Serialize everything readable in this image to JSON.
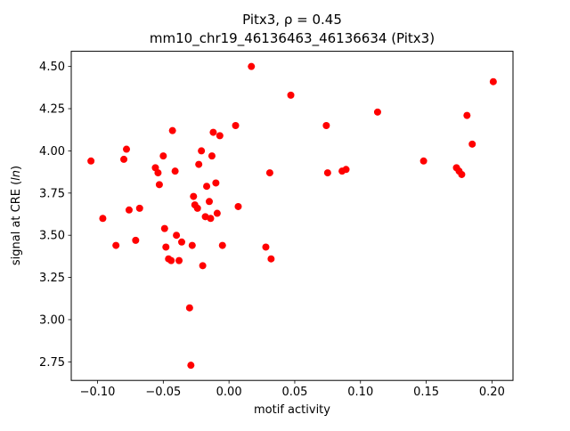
{
  "chart_data": {
    "type": "scatter",
    "title": "Pitx3, ρ = 0.45",
    "subtitle": "mm10_chr19_46136463_46136634 (Pitx3)",
    "xlabel": "motif activity",
    "ylabel_prefix": "signal at CRE (",
    "ylabel_italic": "ln",
    "ylabel_suffix": ")",
    "marker_color": "#ff0000",
    "axis_color": "#000000",
    "background_color": "#ffffff",
    "grid": false,
    "legend": "none",
    "xlim": [
      -0.12,
      0.216
    ],
    "ylim": [
      2.64,
      4.59
    ],
    "xtick_values": [
      -0.1,
      -0.05,
      0.0,
      0.05,
      0.1,
      0.15,
      0.2
    ],
    "xtick_labels": [
      "−0.10",
      "−0.05",
      "0.00",
      "0.05",
      "0.10",
      "0.15",
      "0.20"
    ],
    "ytick_values": [
      2.75,
      3.0,
      3.25,
      3.5,
      3.75,
      4.0,
      4.25,
      4.5
    ],
    "ytick_labels": [
      "2.75",
      "3.00",
      "3.25",
      "3.50",
      "3.75",
      "4.00",
      "4.25",
      "4.50"
    ],
    "points": [
      [
        -0.105,
        3.94
      ],
      [
        -0.096,
        3.6
      ],
      [
        -0.086,
        3.44
      ],
      [
        -0.08,
        3.95
      ],
      [
        -0.078,
        4.01
      ],
      [
        -0.076,
        3.65
      ],
      [
        -0.071,
        3.47
      ],
      [
        -0.068,
        3.66
      ],
      [
        -0.056,
        3.9
      ],
      [
        -0.054,
        3.87
      ],
      [
        -0.053,
        3.8
      ],
      [
        -0.05,
        3.97
      ],
      [
        -0.049,
        3.54
      ],
      [
        -0.048,
        3.43
      ],
      [
        -0.046,
        3.36
      ],
      [
        -0.044,
        3.35
      ],
      [
        -0.043,
        4.12
      ],
      [
        -0.041,
        3.88
      ],
      [
        -0.04,
        3.5
      ],
      [
        -0.038,
        3.35
      ],
      [
        -0.036,
        3.46
      ],
      [
        -0.03,
        3.07
      ],
      [
        -0.029,
        2.73
      ],
      [
        -0.028,
        3.44
      ],
      [
        -0.027,
        3.73
      ],
      [
        -0.026,
        3.68
      ],
      [
        -0.024,
        3.66
      ],
      [
        -0.023,
        3.92
      ],
      [
        -0.021,
        4.0
      ],
      [
        -0.02,
        3.32
      ],
      [
        -0.018,
        3.61
      ],
      [
        -0.017,
        3.79
      ],
      [
        -0.015,
        3.7
      ],
      [
        -0.014,
        3.6
      ],
      [
        -0.013,
        3.97
      ],
      [
        -0.012,
        4.11
      ],
      [
        -0.01,
        3.81
      ],
      [
        -0.009,
        3.63
      ],
      [
        -0.007,
        4.09
      ],
      [
        -0.005,
        3.44
      ],
      [
        0.005,
        4.15
      ],
      [
        0.007,
        3.67
      ],
      [
        0.017,
        4.5
      ],
      [
        0.028,
        3.43
      ],
      [
        0.031,
        3.87
      ],
      [
        0.032,
        3.36
      ],
      [
        0.047,
        4.33
      ],
      [
        0.074,
        4.15
      ],
      [
        0.075,
        3.87
      ],
      [
        0.086,
        3.88
      ],
      [
        0.089,
        3.89
      ],
      [
        0.113,
        4.23
      ],
      [
        0.148,
        3.94
      ],
      [
        0.173,
        3.9
      ],
      [
        0.175,
        3.88
      ],
      [
        0.177,
        3.86
      ],
      [
        0.181,
        4.21
      ],
      [
        0.185,
        4.04
      ],
      [
        0.201,
        4.41
      ]
    ]
  }
}
